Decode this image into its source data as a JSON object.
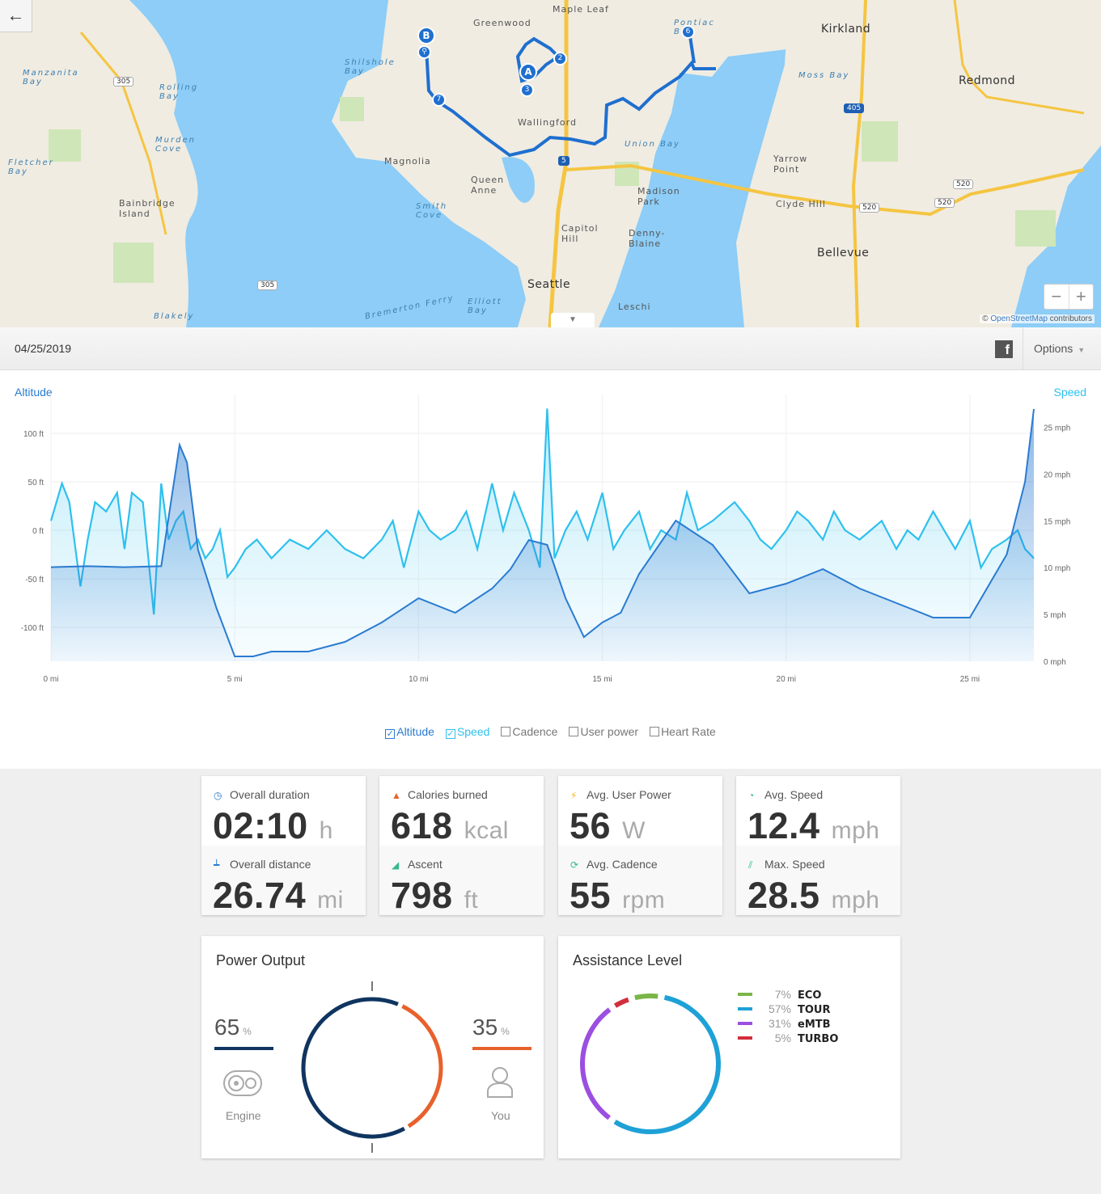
{
  "map": {
    "back_icon": "arrow-left-icon",
    "zoom_out": "−",
    "zoom_in": "+",
    "attribution_symbol": "©",
    "attribution_link": "OpenStreetMap",
    "attribution_text": "contributors",
    "toggle_icon": "chevron-down-icon",
    "places": [
      {
        "name": "Maple Leaf",
        "cls": ""
      },
      {
        "name": "Greenwood",
        "cls": ""
      },
      {
        "name": "Kirkland",
        "cls": "big"
      },
      {
        "name": "Redmond",
        "cls": "big"
      },
      {
        "name": "Manzanita Bay",
        "cls": "water"
      },
      {
        "name": "Rolling Bay",
        "cls": "water"
      },
      {
        "name": "Shilshole Bay",
        "cls": "water"
      },
      {
        "name": "Pontiac Bay",
        "cls": "water"
      },
      {
        "name": "Moss Bay",
        "cls": "water"
      },
      {
        "name": "Murden Cove",
        "cls": "water"
      },
      {
        "name": "Fletcher Bay",
        "cls": "water"
      },
      {
        "name": "Wallingford",
        "cls": ""
      },
      {
        "name": "Magnolia",
        "cls": ""
      },
      {
        "name": "Union Bay",
        "cls": "water"
      },
      {
        "name": "Yarrow Point",
        "cls": ""
      },
      {
        "name": "Queen Anne",
        "cls": ""
      },
      {
        "name": "Madison Park",
        "cls": ""
      },
      {
        "name": "Bainbridge Island",
        "cls": ""
      },
      {
        "name": "Smith Cove",
        "cls": "water"
      },
      {
        "name": "Clyde Hill",
        "cls": ""
      },
      {
        "name": "Capitol Hill",
        "cls": ""
      },
      {
        "name": "Denny-Blaine",
        "cls": ""
      },
      {
        "name": "Bellevue",
        "cls": "big"
      },
      {
        "name": "Seattle",
        "cls": "big"
      },
      {
        "name": "Elliott Bay",
        "cls": "water"
      },
      {
        "name": "Leschi",
        "cls": ""
      },
      {
        "name": "Blakely",
        "cls": "water"
      },
      {
        "name": "Bremerton Ferry",
        "cls": "water"
      }
    ],
    "highways": [
      "305",
      "305",
      "405",
      "5",
      "520",
      "520",
      "520"
    ],
    "markers": [
      "B",
      "A",
      "2",
      "3",
      "6",
      "7"
    ],
    "bike_icon": "bicycle-icon"
  },
  "header": {
    "date": "04/25/2019",
    "facebook_icon": "facebook-icon",
    "facebook_glyph": "f",
    "options_label": "Options",
    "options_caret": "▼"
  },
  "chart_data": {
    "type": "line",
    "left_axis_title": "Altitude",
    "right_axis_title": "Speed",
    "x_unit": "mi",
    "x_ticks": [
      "0 mi",
      "5 mi",
      "10 mi",
      "15 mi",
      "20 mi",
      "25 mi"
    ],
    "y_left_ticks": [
      "100 ft",
      "50 ft",
      "0 ft",
      "-50 ft",
      "-100 ft"
    ],
    "y_left_tick_values": [
      100,
      50,
      0,
      -50,
      -100
    ],
    "y_right_ticks": [
      "25 mph",
      "20 mph",
      "15 mph",
      "10 mph",
      "5 mph",
      "0 mph"
    ],
    "y_right_tick_values": [
      25,
      20,
      15,
      10,
      5,
      0
    ],
    "xlim": [
      0,
      26.74
    ],
    "ylim_left": [
      -135,
      140
    ],
    "ylim_right": [
      0,
      28.5
    ],
    "grid": true,
    "series": [
      {
        "name": "Altitude",
        "axis": "left",
        "color": "#2a7bd1",
        "x": [
          0,
          1,
          2,
          3,
          3.5,
          3.7,
          4,
          4.5,
          5,
          5.5,
          6,
          7,
          8,
          9,
          10,
          11,
          12,
          12.5,
          13,
          13.5,
          14,
          14.5,
          15,
          15.5,
          16,
          17,
          18,
          19,
          20,
          21,
          22,
          23,
          24,
          25,
          26,
          26.5,
          26.74
        ],
        "y": [
          -38,
          -37,
          -38,
          -37,
          88,
          70,
          -20,
          -80,
          -130,
          -130,
          -125,
          -125,
          -115,
          -95,
          -70,
          -85,
          -60,
          -40,
          -10,
          -15,
          -70,
          -110,
          -95,
          -85,
          -45,
          10,
          -15,
          -65,
          -55,
          -40,
          -60,
          -75,
          -90,
          -90,
          -25,
          50,
          125
        ]
      },
      {
        "name": "Speed",
        "axis": "right",
        "color": "#2ec0ee",
        "x": [
          0,
          0.3,
          0.5,
          0.8,
          1,
          1.2,
          1.5,
          1.8,
          2,
          2.2,
          2.5,
          2.8,
          3,
          3.2,
          3.4,
          3.6,
          3.8,
          4,
          4.2,
          4.4,
          4.6,
          4.8,
          5,
          5.3,
          5.6,
          6,
          6.5,
          7,
          7.5,
          8,
          8.5,
          9,
          9.3,
          9.6,
          10,
          10.3,
          10.6,
          11,
          11.3,
          11.6,
          12,
          12.3,
          12.6,
          13,
          13.3,
          13.5,
          13.7,
          14,
          14.3,
          14.6,
          15,
          15.3,
          15.6,
          16,
          16.3,
          16.6,
          17,
          17.3,
          17.6,
          18,
          18.3,
          18.6,
          19,
          19.3,
          19.6,
          20,
          20.3,
          20.6,
          21,
          21.3,
          21.6,
          22,
          22.3,
          22.6,
          23,
          23.3,
          23.6,
          24,
          24.3,
          24.6,
          25,
          25.3,
          25.6,
          26,
          26.3,
          26.5,
          26.74
        ],
        "y": [
          15,
          19,
          17,
          8,
          13,
          17,
          16,
          18,
          12,
          18,
          17,
          5,
          19,
          13,
          15,
          16,
          12,
          13,
          11,
          12,
          14,
          9,
          10,
          12,
          13,
          11,
          13,
          12,
          14,
          12,
          11,
          13,
          15,
          10,
          16,
          14,
          13,
          14,
          16,
          12,
          19,
          14,
          18,
          14,
          10,
          27,
          11,
          14,
          16,
          13,
          18,
          12,
          14,
          16,
          12,
          14,
          13,
          18,
          14,
          15,
          16,
          17,
          15,
          13,
          12,
          14,
          16,
          15,
          13,
          16,
          14,
          13,
          14,
          15,
          12,
          14,
          13,
          16,
          14,
          12,
          15,
          10,
          12,
          13,
          14,
          12,
          11
        ]
      }
    ],
    "legend": [
      {
        "name": "Altitude",
        "checked": true
      },
      {
        "name": "Speed",
        "checked": true
      },
      {
        "name": "Cadence",
        "checked": false
      },
      {
        "name": "User power",
        "checked": false
      },
      {
        "name": "Heart Rate",
        "checked": false
      }
    ]
  },
  "stats": [
    {
      "label": "Overall duration",
      "icon": "clock-icon",
      "glyph": "◷",
      "color": "#2a7bd1",
      "value": "02:10",
      "unit": "h"
    },
    {
      "label": "Overall distance",
      "icon": "ruler-icon",
      "glyph": "┷",
      "color": "#2a7bd1",
      "value": "26.74",
      "unit": "mi"
    },
    {
      "label": "Calories burned",
      "icon": "flame-icon",
      "glyph": "▲",
      "color": "#e8612c",
      "value": "618",
      "unit": "kcal"
    },
    {
      "label": "Ascent",
      "icon": "ascent-icon",
      "glyph": "◢",
      "color": "#37b98b",
      "value": "798",
      "unit": "ft"
    },
    {
      "label": "Avg. User Power",
      "icon": "lightning-icon",
      "glyph": "⚡",
      "color": "#f5b42a",
      "value": "56",
      "unit": "W"
    },
    {
      "label": "Avg. Cadence",
      "icon": "cadence-icon",
      "glyph": "⟳",
      "color": "#37b98b",
      "value": "55",
      "unit": "rpm"
    },
    {
      "label": "Avg. Speed",
      "icon": "speedometer-icon",
      "glyph": "◔",
      "color": "#37b98b",
      "value": "12.4",
      "unit": "mph"
    },
    {
      "label": "Max. Speed",
      "icon": "max-speed-icon",
      "glyph": "⫽",
      "color": "#37b98b",
      "value": "28.5",
      "unit": "mph"
    }
  ],
  "power": {
    "title": "Power Output",
    "engine_pct": "65",
    "engine_pct_value": 65,
    "engine_label": "Engine",
    "engine_color": "#0f3460",
    "you_pct": "35",
    "you_pct_value": 35,
    "you_label": "You",
    "you_color": "#e8612c",
    "pct_sign": "%"
  },
  "assist": {
    "title": "Assistance Level",
    "levels": [
      {
        "name": "ECO",
        "pct": "7%",
        "value": 7,
        "color": "#7ab648"
      },
      {
        "name": "TOUR",
        "pct": "57%",
        "value": 57,
        "color": "#1ea1d6"
      },
      {
        "name": "eMTB",
        "pct": "31%",
        "value": 31,
        "color": "#9b4fe0"
      },
      {
        "name": "TURBO",
        "pct": "5%",
        "value": 5,
        "color": "#d32f3b"
      }
    ]
  }
}
